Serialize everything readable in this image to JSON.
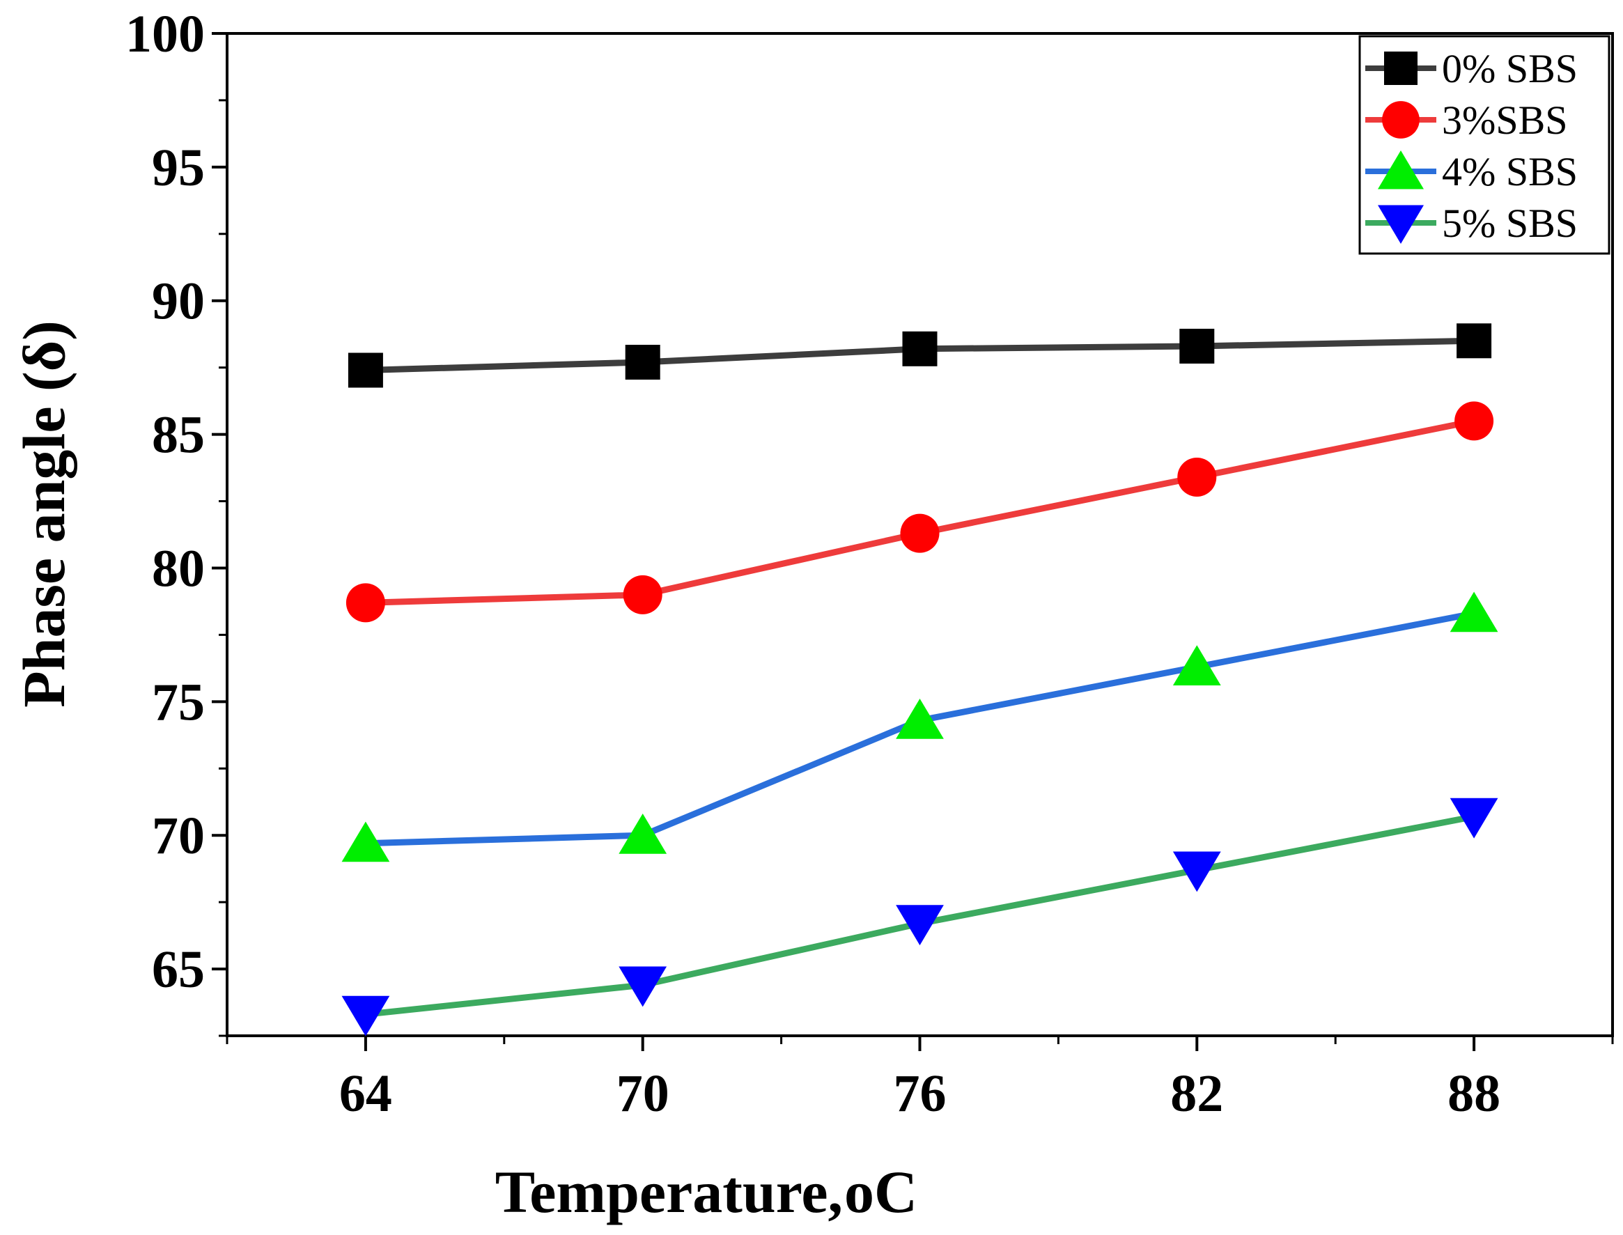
{
  "chart_data": {
    "type": "line",
    "title": "",
    "xlabel": "Temperature,",
    "xlabel_unit": "oC",
    "ylabel": "Phase angle (δ)",
    "x": [
      64,
      70,
      76,
      82,
      88
    ],
    "x_tick_labels": [
      "64",
      "70",
      "76",
      "82",
      "88"
    ],
    "xlim": [
      61,
      91
    ],
    "ylim": [
      62.5,
      100
    ],
    "y_ticks": [
      65,
      70,
      75,
      80,
      85,
      90,
      95,
      100
    ],
    "y_tick_labels": [
      "65",
      "70",
      "75",
      "80",
      "85",
      "90",
      "95",
      "100"
    ],
    "grid": false,
    "legend_position": "top-right",
    "series": [
      {
        "name": "0% SBS",
        "values": [
          87.4,
          87.7,
          88.2,
          88.3,
          88.5
        ],
        "line_color": "#3d3d3d",
        "marker": "square",
        "marker_color": "#000000"
      },
      {
        "name": "3%SBS",
        "values": [
          78.7,
          79.0,
          81.3,
          83.4,
          85.5
        ],
        "line_color": "#ee3b3b",
        "marker": "circle",
        "marker_color": "#ff0000"
      },
      {
        "name": "4% SBS",
        "values": [
          69.7,
          70.0,
          74.3,
          76.3,
          78.3
        ],
        "line_color": "#2a6fdb",
        "marker": "triangle-up",
        "marker_color": "#00ee00"
      },
      {
        "name": "5% SBS",
        "values": [
          63.3,
          64.4,
          66.7,
          68.7,
          70.7
        ],
        "line_color": "#3caa5f",
        "marker": "triangle-down",
        "marker_color": "#0000ff"
      }
    ]
  }
}
